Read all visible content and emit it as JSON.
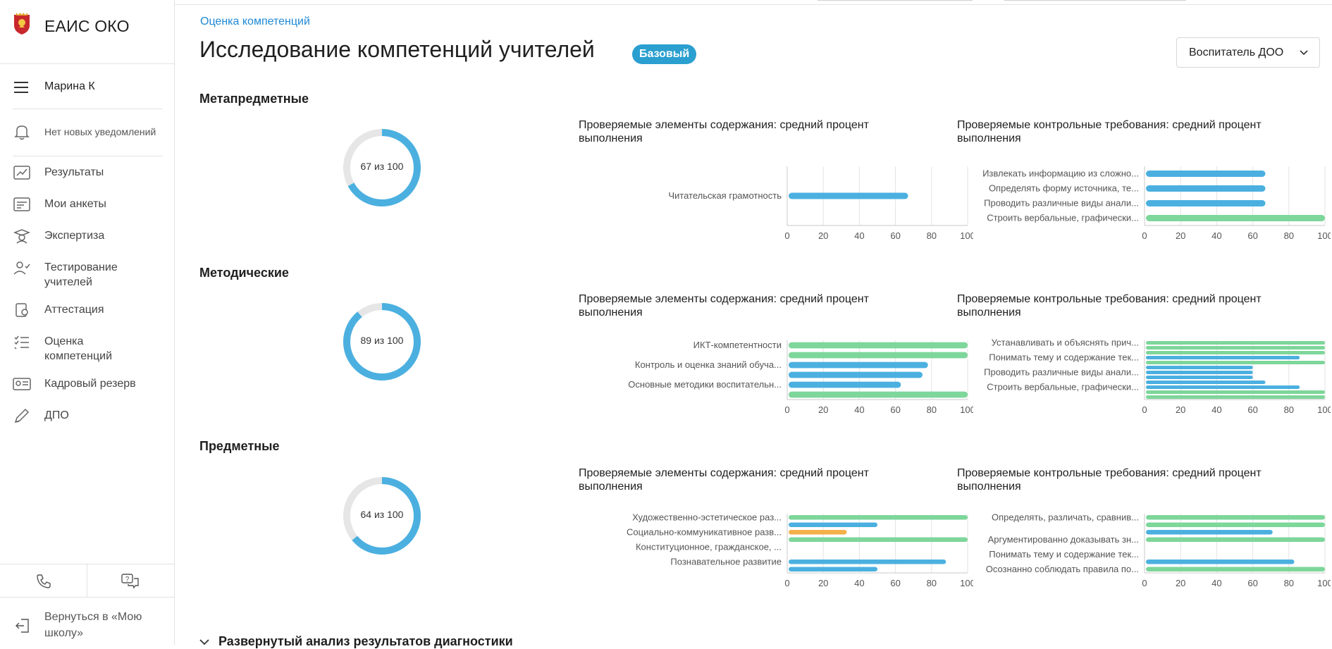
{
  "app": {
    "name": "ЕАИС ОКО"
  },
  "user": {
    "name": "Марина К"
  },
  "notifications": {
    "text": "Нет новых уведомлений"
  },
  "nav": [
    {
      "label": "Результаты",
      "icon": "results-icon"
    },
    {
      "label": "Мои анкеты",
      "icon": "survey-icon"
    },
    {
      "label": "Экспертиза",
      "icon": "expert-icon"
    },
    {
      "label": "Тестирование учителей",
      "icon": "teacher-test-icon"
    },
    {
      "label": "Аттестация",
      "icon": "attestation-icon"
    },
    {
      "label": "Оценка компетенций",
      "icon": "checklist-icon"
    },
    {
      "label": "Кадровый резерв",
      "icon": "id-card-icon"
    },
    {
      "label": "ДПО",
      "icon": "pen-icon"
    }
  ],
  "bottom": {
    "back_label": "Вернуться в «Мою школу»",
    "phone_icon": "phone-icon",
    "chat_icon": "chat-icon"
  },
  "page": {
    "breadcrumb": "Оценка компетенций",
    "title": "Исследование компетенций учителей",
    "badge": "Базовый",
    "role_select": "Воспитатель ДОО",
    "expander": "Развернутый анализ результатов диагностики"
  },
  "colors": {
    "accent": "#1e88d4",
    "badge": "#2a9fd0",
    "blue_bar": "#4bb0e0",
    "green_bar": "#7dd69a",
    "orange_bar": "#f5b04a",
    "donut_bg": "#e6e6e6"
  },
  "sections": [
    {
      "title": "Метапредметные",
      "score": 67,
      "score_label": "67 из 100"
    },
    {
      "title": "Методические",
      "score": 89,
      "score_label": "89 из 100"
    },
    {
      "title": "Предметные",
      "score": 64,
      "score_label": "64 из 100"
    }
  ],
  "chart_titles": {
    "content": "Проверяемые элементы содержания: средний процент выполнения",
    "requirements": "Проверяемые контрольные требования: средний процент выполнения"
  },
  "chart_data": [
    {
      "type": "bar",
      "orientation": "horizontal",
      "section": "Метапредметные",
      "title": "Проверяемые элементы содержания: средний процент выполнения",
      "xlim": [
        0,
        100
      ],
      "ticks": [
        0,
        20,
        40,
        60,
        80,
        100
      ],
      "grid": true,
      "categories": [
        "Читательская грамотность"
      ],
      "bars": [
        {
          "value": 67,
          "color": "blue",
          "label": "Читательская грамотность"
        }
      ]
    },
    {
      "type": "bar",
      "orientation": "horizontal",
      "section": "Метапредметные",
      "title": "Проверяемые контрольные требования: средний процент выполнения",
      "xlim": [
        0,
        100
      ],
      "ticks": [
        0,
        20,
        40,
        60,
        80,
        100
      ],
      "grid": true,
      "categories": [
        "Извлекать информацию из сложно...",
        "Определять форму источника, те...",
        "Проводить различные виды анали...",
        "Строить вербальные, графически..."
      ],
      "bars": [
        {
          "value": 67,
          "color": "blue",
          "label": "Извлекать информацию из сложно..."
        },
        {
          "value": 67,
          "color": "blue",
          "label": "Определять форму источника, те..."
        },
        {
          "value": 67,
          "color": "blue",
          "label": "Проводить различные виды анали..."
        },
        {
          "value": 100,
          "color": "green",
          "label": "Строить вербальные, графически..."
        }
      ]
    },
    {
      "type": "bar",
      "orientation": "horizontal",
      "section": "Методические",
      "title": "Проверяемые элементы содержания: средний процент выполнения",
      "xlim": [
        0,
        100
      ],
      "ticks": [
        0,
        20,
        40,
        60,
        80,
        100
      ],
      "grid": true,
      "categories": [
        "ИКТ-компетентности",
        "Контроль и оценка знаний обуча...",
        "Основные методики воспитательн..."
      ],
      "bars": [
        {
          "value": 100,
          "color": "green",
          "label": "ИКТ-компетентности"
        },
        {
          "value": 100,
          "color": "green",
          "label": ""
        },
        {
          "value": 78,
          "color": "blue",
          "label": "Контроль и оценка знаний обуча..."
        },
        {
          "value": 75,
          "color": "blue",
          "label": ""
        },
        {
          "value": 63,
          "color": "blue",
          "label": "Основные методики воспитательн..."
        },
        {
          "value": 100,
          "color": "green",
          "label": ""
        }
      ]
    },
    {
      "type": "bar",
      "orientation": "horizontal",
      "section": "Методические",
      "title": "Проверяемые контрольные требования: средний процент выполнения",
      "xlim": [
        0,
        100
      ],
      "ticks": [
        0,
        20,
        40,
        60,
        80,
        100
      ],
      "grid": true,
      "categories": [
        "Устанавливать и объяснять прич...",
        "Понимать тему и содержание тек...",
        "Проводить различные виды анали...",
        "Строить вербальные, графически..."
      ],
      "bars": [
        {
          "value": 100,
          "color": "green",
          "label": "Устанавливать и объяснять прич..."
        },
        {
          "value": 100,
          "color": "green",
          "label": ""
        },
        {
          "value": 100,
          "color": "green",
          "label": ""
        },
        {
          "value": 86,
          "color": "blue",
          "label": "Понимать тему и содержание тек..."
        },
        {
          "value": 100,
          "color": "green",
          "label": ""
        },
        {
          "value": 60,
          "color": "blue",
          "label": ""
        },
        {
          "value": 60,
          "color": "blue",
          "label": "Проводить различные виды анали..."
        },
        {
          "value": 60,
          "color": "blue",
          "label": ""
        },
        {
          "value": 67,
          "color": "blue",
          "label": ""
        },
        {
          "value": 86,
          "color": "blue",
          "label": "Строить вербальные, графически..."
        },
        {
          "value": 100,
          "color": "green",
          "label": ""
        },
        {
          "value": 100,
          "color": "green",
          "label": ""
        }
      ]
    },
    {
      "type": "bar",
      "orientation": "horizontal",
      "section": "Предметные",
      "title": "Проверяемые элементы содержания: средний процент выполнения",
      "xlim": [
        0,
        100
      ],
      "ticks": [
        0,
        20,
        40,
        60,
        80,
        100
      ],
      "grid": true,
      "categories": [
        "Художественно-эстетическое раз...",
        "Социально-коммуникативное разв...",
        "Конституционное, гражданское, ...",
        "Познавательное развитие"
      ],
      "bars": [
        {
          "value": 100,
          "color": "green",
          "label": "Художественно-эстетическое раз..."
        },
        {
          "value": 50,
          "color": "blue",
          "label": ""
        },
        {
          "value": 33,
          "color": "orange",
          "label": "Социально-коммуникативное разв..."
        },
        {
          "value": 100,
          "color": "green",
          "label": ""
        },
        {
          "value": 0,
          "color": "blue",
          "label": "Конституционное, гражданское, ..."
        },
        {
          "value": 0,
          "color": "blue",
          "label": ""
        },
        {
          "value": 88,
          "color": "blue",
          "label": "Познавательное развитие"
        },
        {
          "value": 50,
          "color": "blue",
          "label": ""
        }
      ]
    },
    {
      "type": "bar",
      "orientation": "horizontal",
      "section": "Предметные",
      "title": "Проверяемые контрольные требования: средний процент выполнения",
      "xlim": [
        0,
        100
      ],
      "ticks": [
        0,
        20,
        40,
        60,
        80,
        100
      ],
      "grid": true,
      "categories": [
        "Определять, различать, сравнив...",
        "Аргументированно доказывать зн...",
        "Понимать тему и содержание тек...",
        "Осознанно соблюдать правила по..."
      ],
      "bars": [
        {
          "value": 100,
          "color": "green",
          "label": "Определять, различать, сравнив..."
        },
        {
          "value": 100,
          "color": "green",
          "label": ""
        },
        {
          "value": 71,
          "color": "blue",
          "label": ""
        },
        {
          "value": 100,
          "color": "green",
          "label": "Аргументированно доказывать зн..."
        },
        {
          "value": 0,
          "color": "blue",
          "label": ""
        },
        {
          "value": 0,
          "color": "blue",
          "label": "Понимать тему и содержание тек..."
        },
        {
          "value": 83,
          "color": "blue",
          "label": ""
        },
        {
          "value": 100,
          "color": "green",
          "label": "Осознанно соблюдать правила по..."
        }
      ]
    }
  ]
}
